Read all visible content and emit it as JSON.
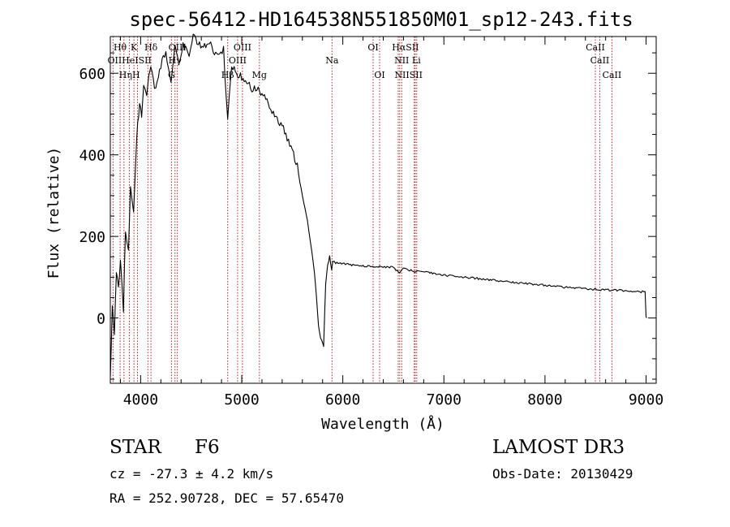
{
  "colors": {
    "line": "#000000",
    "marker": "#b22222",
    "axis": "#000000",
    "background": "#ffffff"
  },
  "chart_data": {
    "type": "line",
    "title": "spec-56412-HD164538N551850M01_sp12-243.fits",
    "xlabel": "Wavelength (Å)",
    "ylabel": "Flux (relative)",
    "xlim": [
      3700,
      9100
    ],
    "ylim": [
      -160,
      690
    ],
    "grid": false,
    "x_ticks": [
      4000,
      5000,
      6000,
      7000,
      8000,
      9000
    ],
    "x_tick_labels": [
      "4000",
      "5000",
      "6000",
      "7000",
      "8000",
      "9000"
    ],
    "y_ticks": [
      0,
      200,
      400,
      600
    ],
    "y_tick_labels": [
      "0",
      "200",
      "400",
      "600"
    ],
    "series": [
      {
        "name": "flux",
        "x": [
          3700,
          3720,
          3740,
          3760,
          3780,
          3800,
          3830,
          3850,
          3880,
          3900,
          3930,
          3950,
          3970,
          3990,
          4010,
          4030,
          4060,
          4080,
          4100,
          4150,
          4200,
          4250,
          4300,
          4340,
          4380,
          4420,
          4480,
          4520,
          4570,
          4620,
          4680,
          4730,
          4780,
          4820,
          4861,
          4900,
          4950,
          5000,
          5050,
          5100,
          5150,
          5200,
          5250,
          5300,
          5350,
          5400,
          5450,
          5500,
          5550,
          5600,
          5650,
          5700,
          5720,
          5740,
          5760,
          5780,
          5800,
          5810,
          5830,
          5850,
          5870,
          5890,
          5900,
          5930,
          6000,
          6100,
          6200,
          6300,
          6400,
          6500,
          6563,
          6600,
          6700,
          6800,
          6900,
          7000,
          7200,
          7400,
          7600,
          7800,
          8000,
          8200,
          8400,
          8500,
          8600,
          8700,
          8800,
          8900,
          8990,
          9000,
          9005
        ],
        "y": [
          -150,
          30,
          -50,
          110,
          70,
          150,
          20,
          220,
          160,
          330,
          250,
          380,
          470,
          520,
          500,
          580,
          540,
          600,
          610,
          560,
          620,
          650,
          580,
          660,
          620,
          670,
          640,
          690,
          670,
          660,
          680,
          650,
          640,
          660,
          480,
          620,
          600,
          590,
          580,
          560,
          560,
          550,
          530,
          510,
          490,
          470,
          440,
          410,
          370,
          300,
          240,
          150,
          110,
          50,
          -20,
          -50,
          -60,
          -70,
          80,
          130,
          150,
          120,
          140,
          135,
          133,
          130,
          128,
          126,
          126,
          124,
          110,
          122,
          115,
          113,
          110,
          105,
          100,
          95,
          90,
          85,
          80,
          75,
          72,
          70,
          69,
          68,
          67,
          65,
          64,
          1,
          0
        ]
      }
    ],
    "line_markers": [
      {
        "name": "Hθ",
        "wavelength": 3797
      },
      {
        "name": "OII",
        "wavelength": 3727
      },
      {
        "name": "Hη",
        "wavelength": 3835
      },
      {
        "name": "HeI",
        "wavelength": 3889
      },
      {
        "name": "K",
        "wavelength": 3934
      },
      {
        "name": "H",
        "wavelength": 3969
      },
      {
        "name": "SII",
        "wavelength": 4072
      },
      {
        "name": "Hδ",
        "wavelength": 4102
      },
      {
        "name": "OIII",
        "wavelength": 4363
      },
      {
        "name": "Hγ",
        "wavelength": 4340
      },
      {
        "name": "G",
        "wavelength": 4305
      },
      {
        "name": "Hβ",
        "wavelength": 4861
      },
      {
        "name": "OIII",
        "wavelength": 4959
      },
      {
        "name": "OIII",
        "wavelength": 5007
      },
      {
        "name": "Mg",
        "wavelength": 5175
      },
      {
        "name": "Na",
        "wavelength": 5893
      },
      {
        "name": "OI",
        "wavelength": 6300
      },
      {
        "name": "OI",
        "wavelength": 6364
      },
      {
        "name": "NII",
        "wavelength": 6548
      },
      {
        "name": "Hα",
        "wavelength": 6563
      },
      {
        "name": "NII",
        "wavelength": 6583
      },
      {
        "name": "Li",
        "wavelength": 6707
      },
      {
        "name": "SII",
        "wavelength": 6716
      },
      {
        "name": "SII",
        "wavelength": 6731
      },
      {
        "name": "CaII",
        "wavelength": 8498
      },
      {
        "name": "CaII",
        "wavelength": 8542
      },
      {
        "name": "CaII",
        "wavelength": 8662
      }
    ],
    "marker_labels": [
      {
        "text": "Hθ",
        "wavelength": 3797,
        "row": 1
      },
      {
        "text": "K",
        "wavelength": 3934,
        "row": 1
      },
      {
        "text": "Hδ",
        "wavelength": 4102,
        "row": 1
      },
      {
        "text": "OIII",
        "wavelength": 4363,
        "row": 1
      },
      {
        "text": "OIII",
        "wavelength": 5007,
        "row": 1
      },
      {
        "text": "OI",
        "wavelength": 6300,
        "row": 1
      },
      {
        "text": "HαSII",
        "wavelength": 6620,
        "row": 1
      },
      {
        "text": "CaII",
        "wavelength": 8498,
        "row": 1
      },
      {
        "text": "OIIHeISII",
        "wavelength": 3890,
        "row": 2
      },
      {
        "text": "Hγ",
        "wavelength": 4340,
        "row": 2
      },
      {
        "text": "OIII",
        "wavelength": 4959,
        "row": 2
      },
      {
        "text": "Na",
        "wavelength": 5893,
        "row": 2
      },
      {
        "text": "NII Li",
        "wavelength": 6640,
        "row": 2
      },
      {
        "text": "CaII",
        "wavelength": 8542,
        "row": 2
      },
      {
        "text": "HηH",
        "wavelength": 3890,
        "row": 3
      },
      {
        "text": "G",
        "wavelength": 4305,
        "row": 3
      },
      {
        "text": "Hβ",
        "wavelength": 4861,
        "row": 3
      },
      {
        "text": "Mg",
        "wavelength": 5175,
        "row": 3
      },
      {
        "text": "OI",
        "wavelength": 6364,
        "row": 3
      },
      {
        "text": "NIISII",
        "wavelength": 6650,
        "row": 3
      },
      {
        "text": "CaII",
        "wavelength": 8662,
        "row": 3
      }
    ]
  },
  "info": {
    "object_type": "STAR",
    "subclass": "F6",
    "survey": "LAMOST DR3",
    "cz_text": "cz = -27.3 ± 4.2 km/s",
    "obs_date_text": "Obs-Date: 20130429",
    "coords_text": "RA = 252.90728, DEC =  57.65470"
  }
}
